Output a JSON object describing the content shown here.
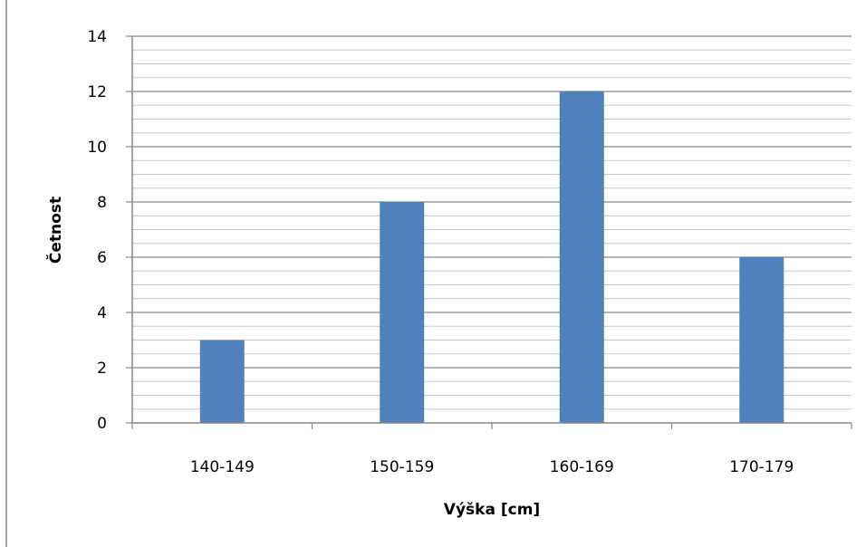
{
  "chart_data": {
    "type": "bar",
    "title": "",
    "xlabel": "Výška [cm]",
    "ylabel": "Četnost",
    "categories": [
      "140-149",
      "150-159",
      "160-169",
      "170-179"
    ],
    "series": [
      {
        "values": [
          3,
          8,
          12,
          6
        ]
      }
    ],
    "ylim": [
      0,
      14
    ],
    "y_major_step": 2,
    "y_minor_step": 0.5,
    "grid": true,
    "legend": "none",
    "colors": {
      "bar": "#4f81bd",
      "major_grid": "#868686",
      "minor_grid": "#c8c8c8",
      "axis": "#868686",
      "border": "#868686"
    }
  }
}
